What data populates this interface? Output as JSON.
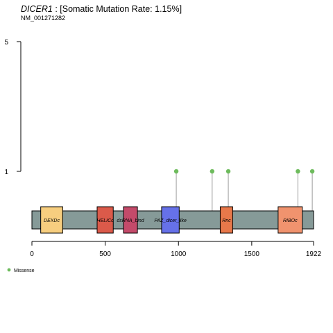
{
  "chart_data": {
    "type": "lollipop",
    "title": {
      "gene": "DICER1",
      "rest": " : [Somatic Mutation Rate: 1.15%]"
    },
    "subtitle": "NM_001271282",
    "protein_length": 1922,
    "xlim": [
      0,
      1922
    ],
    "x_ticks": [
      0,
      500,
      1000,
      1500,
      1922
    ],
    "ylim": [
      0,
      5
    ],
    "y_ticks": [
      1,
      5
    ],
    "domains": [
      {
        "name": "DEXDc",
        "start": 60,
        "end": 210,
        "color": "#F7CE7F"
      },
      {
        "name": "HELICc",
        "start": 445,
        "end": 555,
        "color": "#DB5A4A"
      },
      {
        "name": "dsRNA_bind",
        "start": 625,
        "end": 720,
        "color": "#C44A6A"
      },
      {
        "name": "PAZ_dicer_like",
        "start": 885,
        "end": 1005,
        "color": "#6671E8"
      },
      {
        "name": "Rnc",
        "start": 1285,
        "end": 1370,
        "color": "#E8784A"
      },
      {
        "name": "RIBOc",
        "start": 1680,
        "end": 1845,
        "color": "#F0936E"
      }
    ],
    "mutations": [
      {
        "position": 985,
        "count": 1,
        "type": "Missense"
      },
      {
        "position": 1230,
        "count": 1,
        "type": "Missense"
      },
      {
        "position": 1340,
        "count": 1,
        "type": "Missense"
      },
      {
        "position": 1815,
        "count": 1,
        "type": "Missense"
      },
      {
        "position": 1913,
        "count": 1,
        "type": "Missense"
      }
    ],
    "legend": [
      {
        "label": "Missense",
        "color": "#6DBB5C"
      }
    ],
    "backbone_color": "#869A98"
  }
}
